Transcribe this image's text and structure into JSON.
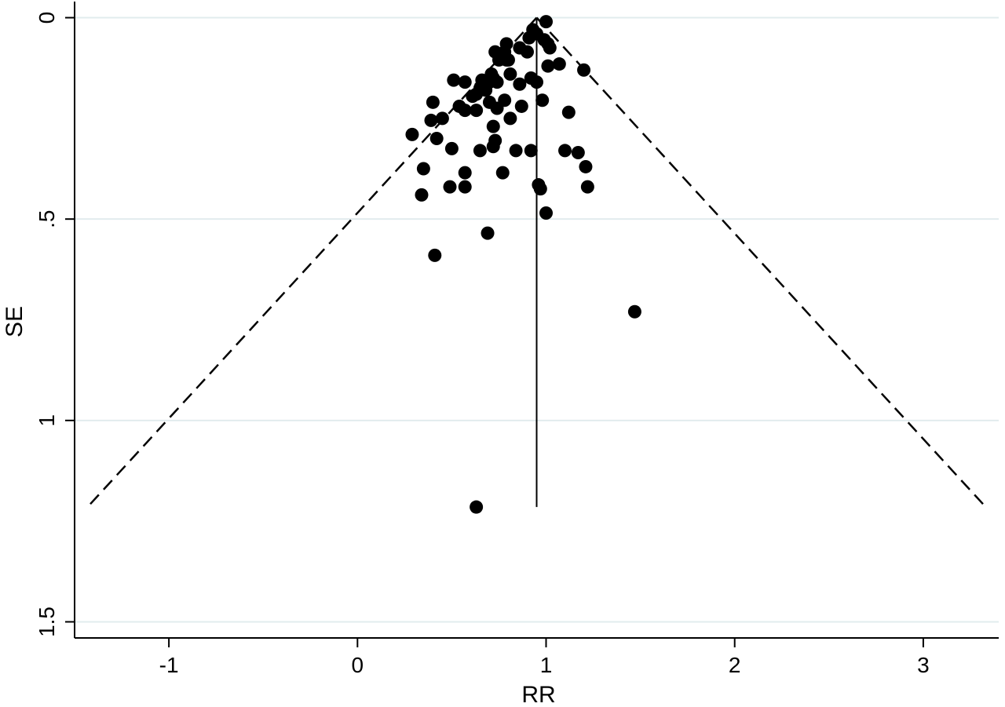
{
  "chart_data": {
    "type": "scatter",
    "title": "",
    "xlabel": "RR",
    "ylabel": "SE",
    "xlim": [
      -1.5,
      3.4
    ],
    "ylim": [
      1.54,
      -0.04
    ],
    "y_inverted": true,
    "x_ticks": [
      {
        "value": -1,
        "label": "-1"
      },
      {
        "value": 0,
        "label": "0"
      },
      {
        "value": 1,
        "label": "1"
      },
      {
        "value": 2,
        "label": "2"
      },
      {
        "value": 3,
        "label": "3"
      }
    ],
    "y_ticks": [
      {
        "value": 0,
        "label": "0"
      },
      {
        "value": 0.5,
        "label": ".5"
      },
      {
        "value": 1,
        "label": "1"
      },
      {
        "value": 1.5,
        "label": "1.5"
      }
    ],
    "grid": "horizontal",
    "pooled_estimate": 0.95,
    "se_max": 1.215,
    "ci_multiplier": 1.96,
    "colors": {
      "points": "#000000",
      "grid": "#e2ecee",
      "axis": "#000000",
      "lines": "#000000"
    },
    "series": [
      {
        "points": [
          [
            1.0,
            0.01
          ],
          [
            0.93,
            0.03
          ],
          [
            0.95,
            0.04
          ],
          [
            0.91,
            0.05
          ],
          [
            0.99,
            0.055
          ],
          [
            1.01,
            0.065
          ],
          [
            0.79,
            0.065
          ],
          [
            0.86,
            0.075
          ],
          [
            1.02,
            0.075
          ],
          [
            0.9,
            0.085
          ],
          [
            0.73,
            0.085
          ],
          [
            0.78,
            0.085
          ],
          [
            0.76,
            0.095
          ],
          [
            0.8,
            0.105
          ],
          [
            0.75,
            0.105
          ],
          [
            0.79,
            0.105
          ],
          [
            1.07,
            0.115
          ],
          [
            1.01,
            0.12
          ],
          [
            1.2,
            0.13
          ],
          [
            0.71,
            0.14
          ],
          [
            0.81,
            0.14
          ],
          [
            0.72,
            0.15
          ],
          [
            0.92,
            0.15
          ],
          [
            0.66,
            0.155
          ],
          [
            0.51,
            0.155
          ],
          [
            0.57,
            0.16
          ],
          [
            0.7,
            0.16
          ],
          [
            0.74,
            0.16
          ],
          [
            0.67,
            0.165
          ],
          [
            0.95,
            0.16
          ],
          [
            0.86,
            0.165
          ],
          [
            0.65,
            0.175
          ],
          [
            0.68,
            0.18
          ],
          [
            0.63,
            0.19
          ],
          [
            0.61,
            0.195
          ],
          [
            0.98,
            0.205
          ],
          [
            0.4,
            0.21
          ],
          [
            0.7,
            0.21
          ],
          [
            0.78,
            0.205
          ],
          [
            0.54,
            0.22
          ],
          [
            0.74,
            0.225
          ],
          [
            0.87,
            0.22
          ],
          [
            0.57,
            0.23
          ],
          [
            0.63,
            0.23
          ],
          [
            1.12,
            0.235
          ],
          [
            0.45,
            0.25
          ],
          [
            0.81,
            0.25
          ],
          [
            0.39,
            0.255
          ],
          [
            0.72,
            0.27
          ],
          [
            0.29,
            0.29
          ],
          [
            0.42,
            0.3
          ],
          [
            0.73,
            0.305
          ],
          [
            0.72,
            0.32
          ],
          [
            0.5,
            0.325
          ],
          [
            0.65,
            0.33
          ],
          [
            0.84,
            0.33
          ],
          [
            0.92,
            0.33
          ],
          [
            1.1,
            0.33
          ],
          [
            1.17,
            0.335
          ],
          [
            0.35,
            0.375
          ],
          [
            1.21,
            0.37
          ],
          [
            0.57,
            0.385
          ],
          [
            0.77,
            0.385
          ],
          [
            0.96,
            0.415
          ],
          [
            0.49,
            0.42
          ],
          [
            0.57,
            0.42
          ],
          [
            1.22,
            0.42
          ],
          [
            0.97,
            0.425
          ],
          [
            0.34,
            0.44
          ],
          [
            1.0,
            0.485
          ],
          [
            0.69,
            0.535
          ],
          [
            0.41,
            0.59
          ],
          [
            1.47,
            0.73
          ],
          [
            0.63,
            1.215
          ]
        ]
      }
    ]
  }
}
